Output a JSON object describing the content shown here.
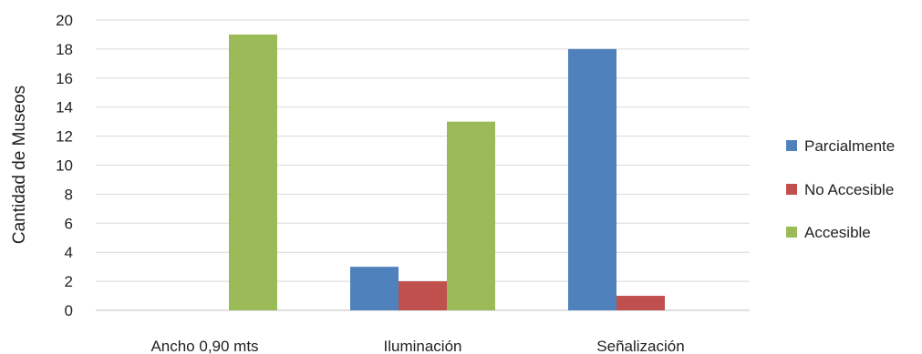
{
  "chart_data": {
    "type": "bar",
    "categories": [
      "Ancho 0,90 mts",
      "Iluminación",
      "Señalización"
    ],
    "series": [
      {
        "name": "Parcialmente",
        "color": "#4f81bd",
        "values": [
          0,
          3,
          18
        ]
      },
      {
        "name": "No Accesible",
        "color": "#c0504d",
        "values": [
          0,
          2,
          1
        ]
      },
      {
        "name": "Accesible",
        "color": "#9bbb59",
        "values": [
          19,
          13,
          0
        ]
      }
    ],
    "ylabel": "Cantidad de Museos",
    "ylim": [
      0,
      20
    ],
    "yticks": [
      0,
      2,
      4,
      6,
      8,
      10,
      12,
      14,
      16,
      18,
      20
    ],
    "grid": true,
    "legend": "right"
  }
}
